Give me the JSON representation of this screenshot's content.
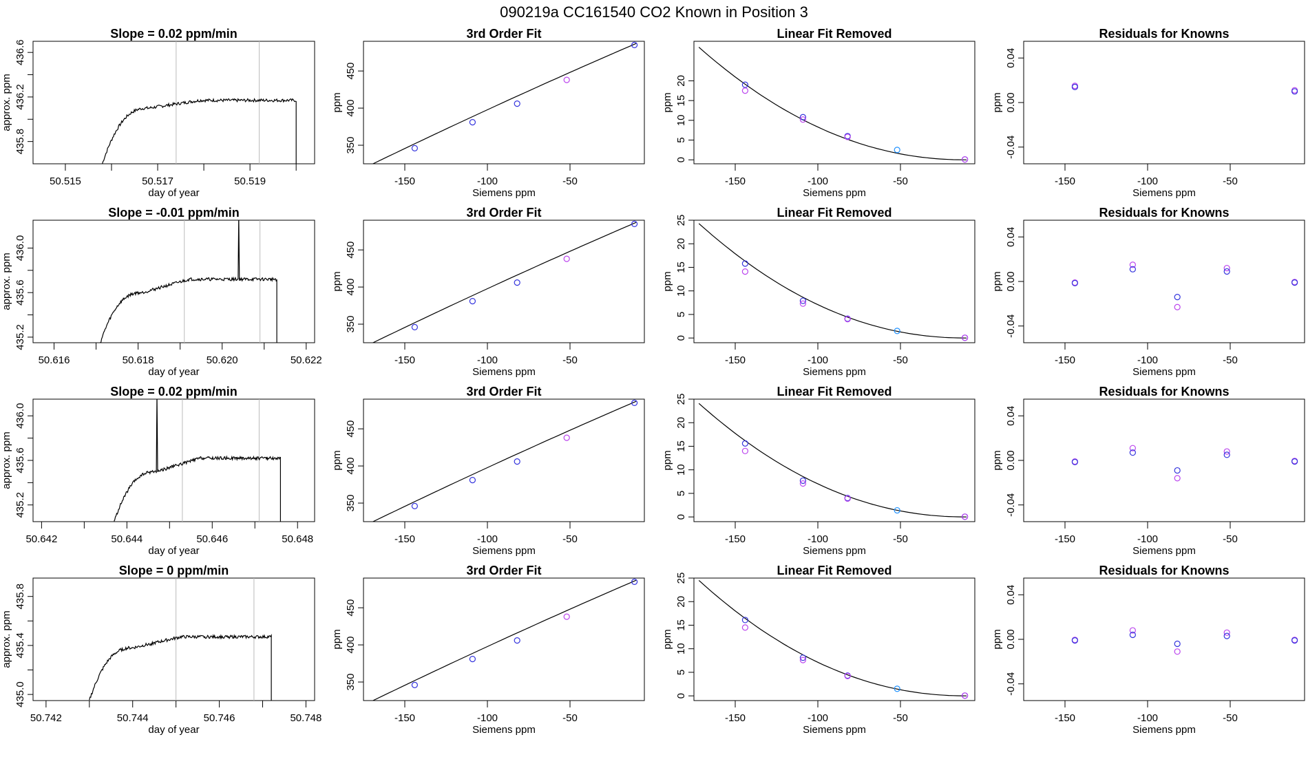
{
  "page_title": "090219a      CC161540    CO2 Known in Position  3",
  "colors": {
    "trace": "#000000",
    "known_blue": "#3333dd",
    "known_violet": "#bb44ee",
    "cyan": "#1e90ff",
    "vline": "#bbbbbb",
    "background": "#ffffff"
  },
  "chart_data": [
    {
      "type": "line",
      "panel": "trace",
      "row": 1,
      "title": "Slope =  0.02  ppm/min",
      "xlabel": "day of year",
      "ylabel": "approx. ppm",
      "xlim": [
        50.5143,
        50.5204
      ],
      "ylim": [
        435.6,
        436.7
      ],
      "xticks": [
        50.515,
        50.516,
        50.517,
        50.518,
        50.519,
        50.52
      ],
      "xtick_labels": [
        "50.515",
        "",
        "50.517",
        "",
        "50.519",
        ""
      ],
      "yticks": [
        435.8,
        436.2,
        436.6
      ],
      "ytick_labels": [
        "435.8",
        "436.2",
        "436.6"
      ],
      "ytick_minor": [
        436.0,
        436.4
      ],
      "rise_start": 50.5158,
      "plateau_start": 50.5168,
      "drop_x": 50.52,
      "y_start": 435.6,
      "y_mid": 436.1,
      "y_plateau": 436.17,
      "vlines": [
        50.5174,
        50.5192
      ]
    },
    {
      "type": "scatter",
      "panel": "fit",
      "row": 1,
      "title": "3rd Order Fit",
      "xlabel": "Siemens ppm",
      "ylabel": "ppm",
      "xlim": [
        -175,
        -5
      ],
      "ylim": [
        325,
        490
      ],
      "xticks": [
        -150,
        -100,
        -50
      ],
      "yticks": [
        350,
        400,
        450
      ],
      "curve": [
        [
          -172,
          322
        ],
        [
          -10,
          487
        ]
      ],
      "points": [
        [
          -144,
          346,
          "known_blue"
        ],
        [
          -109,
          381,
          "known_blue"
        ],
        [
          -82,
          406,
          "known_blue"
        ],
        [
          -52,
          438,
          "known_violet"
        ],
        [
          -11,
          485,
          "known_blue"
        ]
      ]
    },
    {
      "type": "scatter",
      "panel": "linfit",
      "row": 1,
      "title": "Linear Fit Removed",
      "xlabel": "Siemens ppm",
      "ylabel": "ppm",
      "xlim": [
        -175,
        -5
      ],
      "ylim": [
        -1,
        30
      ],
      "xticks": [
        -150,
        -100,
        -50
      ],
      "yticks": [
        0,
        5,
        10,
        15,
        20
      ],
      "curve_x": [
        -172,
        -10
      ],
      "curve_y_at_start": 28.5,
      "curve_power": 2.1,
      "points": [
        [
          -144,
          19,
          "known_blue"
        ],
        [
          -144,
          17.5,
          "known_violet"
        ],
        [
          -109,
          10.8,
          "known_blue"
        ],
        [
          -109,
          10.2,
          "known_violet"
        ],
        [
          -82,
          6,
          "known_blue"
        ],
        [
          -82,
          5.8,
          "known_violet"
        ],
        [
          -52,
          2.5,
          "cyan"
        ],
        [
          -11,
          0.1,
          "known_blue"
        ],
        [
          -11,
          0.1,
          "known_violet"
        ]
      ]
    },
    {
      "type": "scatter",
      "panel": "residuals",
      "row": 1,
      "title": "Residuals for Knowns",
      "xlabel": "Siemens ppm",
      "ylabel": "ppm",
      "xlim": [
        -175,
        -5
      ],
      "ylim": [
        -0.055,
        0.055
      ],
      "xticks": [
        -150,
        -100,
        -50
      ],
      "yticks": [
        -0.04,
        0.0,
        0.04
      ],
      "ytick_labels": [
        "-0.04",
        "0.00",
        "0.04"
      ],
      "points": [
        [
          -144,
          0.015,
          "known_violet"
        ],
        [
          -144,
          0.014,
          "known_blue"
        ],
        [
          -11,
          0.011,
          "known_violet"
        ],
        [
          -11,
          0.01,
          "known_blue"
        ]
      ]
    },
    {
      "type": "line",
      "panel": "trace",
      "row": 2,
      "title": "Slope =  -0.01  ppm/min",
      "xlabel": "day of year",
      "ylabel": "approx. ppm",
      "xlim": [
        50.6155,
        50.6222
      ],
      "ylim": [
        435.15,
        436.25
      ],
      "xticks": [
        50.616,
        50.617,
        50.618,
        50.619,
        50.62,
        50.621,
        50.622
      ],
      "xtick_labels": [
        "50.616",
        "",
        "50.618",
        "",
        "50.620",
        "",
        "50.622"
      ],
      "yticks": [
        435.2,
        435.6,
        436.0
      ],
      "ytick_labels": [
        "435.2",
        "435.6",
        "436.0"
      ],
      "ytick_minor": [
        435.4,
        435.8
      ],
      "rise_start": 50.6171,
      "plateau_start": 50.6181,
      "drop_x": 50.6213,
      "y_start": 435.15,
      "y_mid": 435.6,
      "y_plateau": 435.72,
      "spike_x": 50.6204,
      "spike_y": 436.3,
      "vlines": [
        50.6191,
        50.6209
      ]
    },
    {
      "type": "scatter",
      "panel": "fit",
      "row": 2,
      "title": "3rd Order Fit",
      "xlabel": "Siemens ppm",
      "ylabel": "ppm",
      "xlim": [
        -175,
        -5
      ],
      "ylim": [
        325,
        490
      ],
      "xticks": [
        -150,
        -100,
        -50
      ],
      "yticks": [
        350,
        400,
        450
      ],
      "curve": [
        [
          -172,
          322
        ],
        [
          -10,
          487
        ]
      ],
      "points": [
        [
          -144,
          346,
          "known_blue"
        ],
        [
          -109,
          381,
          "known_blue"
        ],
        [
          -82,
          406,
          "known_blue"
        ],
        [
          -52,
          438,
          "known_violet"
        ],
        [
          -11,
          485,
          "known_blue"
        ]
      ]
    },
    {
      "type": "scatter",
      "panel": "linfit",
      "row": 2,
      "title": "Linear Fit Removed",
      "xlabel": "Siemens ppm",
      "ylabel": "ppm",
      "xlim": [
        -175,
        -5
      ],
      "ylim": [
        -1,
        25
      ],
      "xticks": [
        -150,
        -100,
        -50
      ],
      "yticks": [
        0,
        5,
        10,
        15,
        20,
        25
      ],
      "curve_x": [
        -172,
        -10
      ],
      "curve_y_at_start": 24.3,
      "curve_power": 2.1,
      "points": [
        [
          -144,
          15.8,
          "known_blue"
        ],
        [
          -144,
          14.1,
          "known_violet"
        ],
        [
          -109,
          7.9,
          "known_blue"
        ],
        [
          -109,
          7.3,
          "known_violet"
        ],
        [
          -82,
          4.1,
          "known_blue"
        ],
        [
          -82,
          4.0,
          "known_violet"
        ],
        [
          -52,
          1.5,
          "cyan"
        ],
        [
          -11,
          0.05,
          "known_blue"
        ],
        [
          -11,
          0.05,
          "known_violet"
        ]
      ]
    },
    {
      "type": "scatter",
      "panel": "residuals",
      "row": 2,
      "title": "Residuals for Knowns",
      "xlabel": "Siemens ppm",
      "ylabel": "ppm",
      "xlim": [
        -175,
        -5
      ],
      "ylim": [
        -0.055,
        0.055
      ],
      "xticks": [
        -150,
        -100,
        -50
      ],
      "yticks": [
        -0.04,
        0.0,
        0.04
      ],
      "ytick_labels": [
        "-0.04",
        "0.00",
        "0.04"
      ],
      "points": [
        [
          -144,
          -0.001,
          "known_violet"
        ],
        [
          -144,
          -0.0015,
          "known_blue"
        ],
        [
          -109,
          0.015,
          "known_violet"
        ],
        [
          -109,
          0.011,
          "known_blue"
        ],
        [
          -82,
          -0.023,
          "known_violet"
        ],
        [
          -82,
          -0.014,
          "known_blue"
        ],
        [
          -52,
          0.012,
          "known_violet"
        ],
        [
          -52,
          0.009,
          "known_blue"
        ],
        [
          -11,
          -0.0005,
          "known_violet"
        ],
        [
          -11,
          -0.001,
          "known_blue"
        ]
      ]
    },
    {
      "type": "line",
      "panel": "trace",
      "row": 3,
      "title": "Slope =  0.02  ppm/min",
      "xlabel": "day of year",
      "ylabel": "approx. ppm",
      "xlim": [
        50.6418,
        50.6484
      ],
      "ylim": [
        435.05,
        436.15
      ],
      "xticks": [
        50.642,
        50.643,
        50.644,
        50.645,
        50.646,
        50.647,
        50.648
      ],
      "xtick_labels": [
        "50.642",
        "",
        "50.644",
        "",
        "50.646",
        "",
        "50.648"
      ],
      "yticks": [
        435.2,
        435.6,
        436.0
      ],
      "ytick_labels": [
        "435.2",
        "435.6",
        "436.0"
      ],
      "ytick_minor": [
        435.4,
        435.8
      ],
      "rise_start": 50.6437,
      "plateau_start": 50.6447,
      "drop_x": 50.6476,
      "y_start": 435.05,
      "y_mid": 435.5,
      "y_plateau": 435.62,
      "spike_x": 50.6447,
      "spike_y": 436.2,
      "vlines": [
        50.6453,
        50.6471
      ]
    },
    {
      "type": "scatter",
      "panel": "fit",
      "row": 3,
      "title": "3rd Order Fit",
      "xlabel": "Siemens ppm",
      "ylabel": "ppm",
      "xlim": [
        -175,
        -5
      ],
      "ylim": [
        325,
        490
      ],
      "xticks": [
        -150,
        -100,
        -50
      ],
      "yticks": [
        350,
        400,
        450
      ],
      "curve": [
        [
          -172,
          322
        ],
        [
          -10,
          487
        ]
      ],
      "points": [
        [
          -144,
          346,
          "known_blue"
        ],
        [
          -109,
          381,
          "known_blue"
        ],
        [
          -82,
          406,
          "known_blue"
        ],
        [
          -52,
          438,
          "known_violet"
        ],
        [
          -11,
          485,
          "known_blue"
        ]
      ]
    },
    {
      "type": "scatter",
      "panel": "linfit",
      "row": 3,
      "title": "Linear Fit Removed",
      "xlabel": "Siemens ppm",
      "ylabel": "ppm",
      "xlim": [
        -175,
        -5
      ],
      "ylim": [
        -1,
        25
      ],
      "xticks": [
        -150,
        -100,
        -50
      ],
      "yticks": [
        0,
        5,
        10,
        15,
        20,
        25
      ],
      "curve_x": [
        -172,
        -10
      ],
      "curve_y_at_start": 24.1,
      "curve_power": 2.1,
      "points": [
        [
          -144,
          15.6,
          "known_blue"
        ],
        [
          -144,
          14.0,
          "known_violet"
        ],
        [
          -109,
          7.7,
          "known_blue"
        ],
        [
          -109,
          7.1,
          "known_violet"
        ],
        [
          -82,
          4.0,
          "known_blue"
        ],
        [
          -82,
          3.9,
          "known_violet"
        ],
        [
          -52,
          1.4,
          "cyan"
        ],
        [
          -11,
          0.05,
          "known_blue"
        ],
        [
          -11,
          0.05,
          "known_violet"
        ]
      ]
    },
    {
      "type": "scatter",
      "panel": "residuals",
      "row": 3,
      "title": "Residuals for Knowns",
      "xlabel": "Siemens ppm",
      "ylabel": "ppm",
      "xlim": [
        -175,
        -5
      ],
      "ylim": [
        -0.055,
        0.055
      ],
      "xticks": [
        -150,
        -100,
        -50
      ],
      "yticks": [
        -0.04,
        0.0,
        0.04
      ],
      "ytick_labels": [
        "-0.04",
        "0.00",
        "0.04"
      ],
      "points": [
        [
          -144,
          -0.001,
          "known_violet"
        ],
        [
          -144,
          -0.0015,
          "known_blue"
        ],
        [
          -109,
          0.011,
          "known_violet"
        ],
        [
          -109,
          0.007,
          "known_blue"
        ],
        [
          -82,
          -0.016,
          "known_violet"
        ],
        [
          -82,
          -0.009,
          "known_blue"
        ],
        [
          -52,
          0.008,
          "known_violet"
        ],
        [
          -52,
          0.005,
          "known_blue"
        ],
        [
          -11,
          -0.0005,
          "known_violet"
        ],
        [
          -11,
          -0.001,
          "known_blue"
        ]
      ]
    },
    {
      "type": "line",
      "panel": "trace",
      "row": 4,
      "title": "Slope =  0  ppm/min",
      "xlabel": "day of year",
      "ylabel": "approx. ppm",
      "xlim": [
        50.7417,
        50.7482
      ],
      "ylim": [
        434.95,
        435.95
      ],
      "xticks": [
        50.742,
        50.743,
        50.744,
        50.745,
        50.746,
        50.747,
        50.748
      ],
      "xtick_labels": [
        "50.742",
        "",
        "50.744",
        "",
        "50.746",
        "",
        "50.748"
      ],
      "yticks": [
        435.0,
        435.4,
        435.8
      ],
      "ytick_labels": [
        "435.0",
        "435.4",
        "435.8"
      ],
      "ytick_minor": [
        435.2,
        435.6
      ],
      "rise_start": 50.743,
      "plateau_start": 50.744,
      "drop_x": 50.7472,
      "y_start": 434.95,
      "y_mid": 435.38,
      "y_plateau": 435.47,
      "vlines": [
        50.745,
        50.7468
      ]
    },
    {
      "type": "scatter",
      "panel": "fit",
      "row": 4,
      "title": "3rd Order Fit",
      "xlabel": "Siemens ppm",
      "ylabel": "ppm",
      "xlim": [
        -175,
        -5
      ],
      "ylim": [
        325,
        490
      ],
      "xticks": [
        -150,
        -100,
        -50
      ],
      "yticks": [
        350,
        400,
        450
      ],
      "curve": [
        [
          -172,
          322
        ],
        [
          -10,
          487
        ]
      ],
      "points": [
        [
          -144,
          346,
          "known_blue"
        ],
        [
          -109,
          381,
          "known_blue"
        ],
        [
          -82,
          406,
          "known_blue"
        ],
        [
          -52,
          438,
          "known_violet"
        ],
        [
          -11,
          485,
          "known_blue"
        ]
      ]
    },
    {
      "type": "scatter",
      "panel": "linfit",
      "row": 4,
      "title": "Linear Fit Removed",
      "xlabel": "Siemens ppm",
      "ylabel": "ppm",
      "xlim": [
        -175,
        -5
      ],
      "ylim": [
        -1,
        25
      ],
      "xticks": [
        -150,
        -100,
        -50
      ],
      "yticks": [
        0,
        5,
        10,
        15,
        20,
        25
      ],
      "curve_x": [
        -172,
        -10
      ],
      "curve_y_at_start": 24.5,
      "curve_power": 2.1,
      "points": [
        [
          -144,
          16.1,
          "known_blue"
        ],
        [
          -144,
          14.5,
          "known_violet"
        ],
        [
          -109,
          8.1,
          "known_blue"
        ],
        [
          -109,
          7.6,
          "known_violet"
        ],
        [
          -82,
          4.3,
          "known_blue"
        ],
        [
          -82,
          4.2,
          "known_violet"
        ],
        [
          -52,
          1.5,
          "cyan"
        ],
        [
          -11,
          0.05,
          "known_blue"
        ],
        [
          -11,
          0.05,
          "known_violet"
        ]
      ]
    },
    {
      "type": "scatter",
      "panel": "residuals",
      "row": 4,
      "title": "Residuals for Knowns",
      "xlabel": "Siemens ppm",
      "ylabel": "ppm",
      "xlim": [
        -175,
        -5
      ],
      "ylim": [
        -0.055,
        0.055
      ],
      "xticks": [
        -150,
        -100,
        -50
      ],
      "yticks": [
        -0.04,
        0.0,
        0.04
      ],
      "ytick_labels": [
        "-0.04",
        "0.00",
        "0.04"
      ],
      "points": [
        [
          -144,
          -0.0005,
          "known_violet"
        ],
        [
          -144,
          -0.001,
          "known_blue"
        ],
        [
          -109,
          0.008,
          "known_violet"
        ],
        [
          -109,
          0.004,
          "known_blue"
        ],
        [
          -82,
          -0.011,
          "known_violet"
        ],
        [
          -82,
          -0.004,
          "known_blue"
        ],
        [
          -52,
          0.006,
          "known_violet"
        ],
        [
          -52,
          0.003,
          "known_blue"
        ],
        [
          -11,
          -0.0005,
          "known_violet"
        ],
        [
          -11,
          -0.001,
          "known_blue"
        ]
      ]
    }
  ]
}
